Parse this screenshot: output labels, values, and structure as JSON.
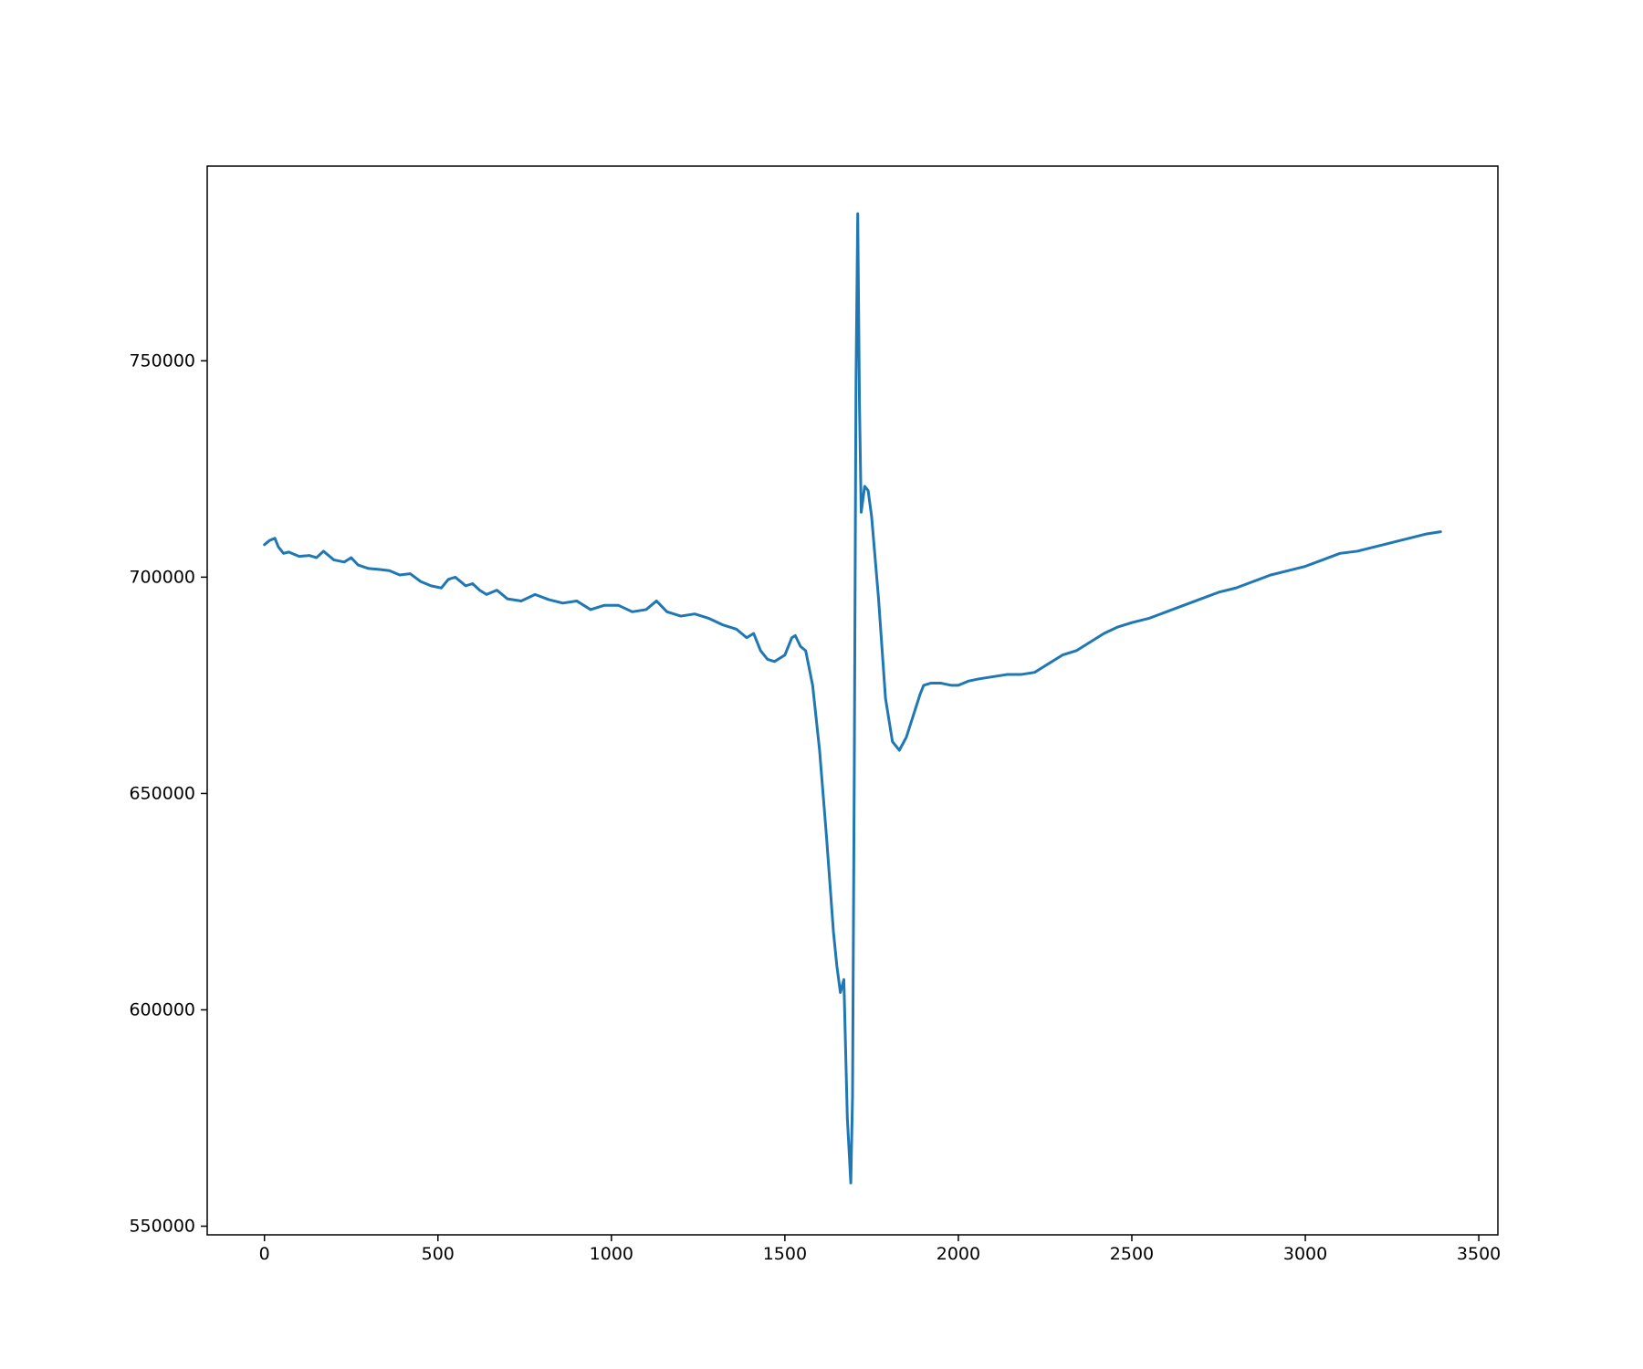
{
  "chart_data": {
    "type": "line",
    "title": "",
    "xlabel": "",
    "ylabel": "",
    "xlim": [
      -165,
      3555
    ],
    "ylim": [
      548000,
      795000
    ],
    "xticks": [
      0,
      500,
      1000,
      1500,
      2000,
      2500,
      3000,
      3500
    ],
    "xtick_labels": [
      "0",
      "500",
      "1000",
      "1500",
      "2000",
      "2500",
      "3000",
      "3500"
    ],
    "yticks": [
      550000,
      600000,
      650000,
      700000,
      750000
    ],
    "ytick_labels": [
      "550000",
      "600000",
      "650000",
      "700000",
      "750000"
    ],
    "grid": false,
    "legend": "none",
    "series": [
      {
        "color": "#1f77b4",
        "x": [
          0,
          15,
          30,
          40,
          55,
          70,
          100,
          130,
          150,
          170,
          200,
          230,
          250,
          270,
          300,
          330,
          360,
          390,
          420,
          450,
          480,
          510,
          530,
          550,
          580,
          600,
          620,
          640,
          670,
          700,
          740,
          780,
          820,
          860,
          900,
          940,
          980,
          1020,
          1060,
          1100,
          1130,
          1160,
          1200,
          1240,
          1280,
          1320,
          1360,
          1390,
          1410,
          1430,
          1450,
          1470,
          1500,
          1520,
          1530,
          1545,
          1560,
          1580,
          1600,
          1620,
          1640,
          1650,
          1660,
          1670,
          1680,
          1690,
          1695,
          1700,
          1705,
          1710,
          1715,
          1720,
          1725,
          1730,
          1740,
          1750,
          1770,
          1790,
          1810,
          1830,
          1850,
          1870,
          1890,
          1900,
          1920,
          1950,
          1980,
          2000,
          2030,
          2060,
          2100,
          2140,
          2180,
          2220,
          2260,
          2300,
          2340,
          2380,
          2420,
          2460,
          2500,
          2550,
          2600,
          2650,
          2700,
          2750,
          2800,
          2850,
          2900,
          2950,
          3000,
          3050,
          3100,
          3150,
          3200,
          3250,
          3300,
          3350,
          3390
        ],
        "y": [
          707500,
          708500,
          709000,
          707000,
          705500,
          705800,
          704800,
          705000,
          704500,
          706000,
          704000,
          703500,
          704500,
          702800,
          702000,
          701800,
          701500,
          700500,
          700800,
          699000,
          698000,
          697500,
          699500,
          700000,
          698000,
          698500,
          697000,
          696000,
          697000,
          695000,
          694500,
          696000,
          694800,
          694000,
          694500,
          692500,
          693500,
          693500,
          692000,
          692500,
          694500,
          692000,
          691000,
          691500,
          690500,
          689000,
          688000,
          686000,
          687000,
          683000,
          681000,
          680500,
          682000,
          686000,
          686500,
          684000,
          683000,
          675000,
          660000,
          640000,
          618000,
          610000,
          604000,
          607000,
          575000,
          560000,
          580000,
          655000,
          745000,
          784000,
          740000,
          715000,
          718000,
          721000,
          720000,
          714000,
          695000,
          672000,
          662000,
          660000,
          663000,
          668000,
          673000,
          675000,
          675500,
          675500,
          675000,
          675000,
          676000,
          676500,
          677000,
          677500,
          677500,
          678000,
          680000,
          682000,
          683000,
          685000,
          687000,
          688500,
          689500,
          690500,
          692000,
          693500,
          695000,
          696500,
          697500,
          699000,
          700500,
          701500,
          702500,
          704000,
          705500,
          706000,
          707000,
          708000,
          709000,
          710000,
          710500
        ]
      }
    ]
  }
}
